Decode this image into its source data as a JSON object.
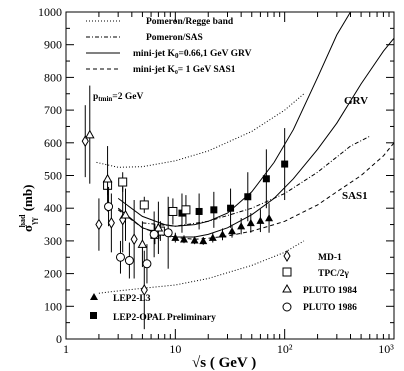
{
  "chart_data": {
    "type": "scatter",
    "title": "",
    "xlabel": "√s ( GeV )",
    "ylabel_main": "σ",
    "ylabel_sub": "γγ",
    "ylabel_sup": "had",
    "ylabel_unit": " (mb)",
    "xscale": "log",
    "xlim": [
      1,
      1000
    ],
    "ylim": [
      0,
      1000
    ],
    "x_ticks": [
      {
        "value": 1,
        "label": "1"
      },
      {
        "value": 10,
        "label": "10"
      },
      {
        "value": 100,
        "label": "10²"
      },
      {
        "value": 1000,
        "label": "10³"
      }
    ],
    "y_ticks": [
      0,
      100,
      200,
      300,
      400,
      500,
      600,
      700,
      800,
      900,
      1000
    ],
    "grid": false,
    "annotation_ptmin": "p",
    "annotation_ptmin_sub": "tmin",
    "annotation_ptmin_rest": "=2 GeV",
    "curve_labels": [
      {
        "text": "GRV",
        "x": 160,
        "y": 800
      },
      {
        "text": "SAS1",
        "x": 290,
        "y": 420
      }
    ],
    "line_legend": [
      {
        "label": "Pomeron/Regge band",
        "style": "dotted"
      },
      {
        "label": "Pomeron/SAS",
        "style": "dashdot"
      },
      {
        "label_main": "mini-jet K",
        "label_sub": "0",
        "label_rest": "=0.66,1 GeV  GRV",
        "style": "solid"
      },
      {
        "label": "mini-jet K₀= 1 GeV  SAS1",
        "style": "dashed"
      }
    ],
    "marker_legend_left": [
      {
        "label": "LEP2-L3",
        "marker": "triangle-filled"
      },
      {
        "label": "LEP2-OPAL Preliminary",
        "marker": "square-filled"
      }
    ],
    "marker_legend_right": [
      {
        "label": "MD-1",
        "marker": "diamond-open"
      },
      {
        "label": "TPC/2γ",
        "marker": "square-open"
      },
      {
        "label": "PLUTO 1984",
        "marker": "triangle-open"
      },
      {
        "label": "PLUTO 1986",
        "marker": "circle-open"
      }
    ],
    "series": [
      {
        "name": "LEP2-L3",
        "marker": "triangle-filled",
        "points": [
          {
            "x": 10,
            "y": 310,
            "err": 15
          },
          {
            "x": 12,
            "y": 305,
            "err": 12
          },
          {
            "x": 15,
            "y": 302,
            "err": 12
          },
          {
            "x": 18,
            "y": 300,
            "err": 12
          },
          {
            "x": 22,
            "y": 310,
            "err": 15
          },
          {
            "x": 27,
            "y": 320,
            "err": 18
          },
          {
            "x": 33,
            "y": 330,
            "err": 20
          },
          {
            "x": 40,
            "y": 345,
            "err": 25
          },
          {
            "x": 49,
            "y": 355,
            "err": 30
          },
          {
            "x": 60,
            "y": 362,
            "err": 35
          },
          {
            "x": 72,
            "y": 370,
            "err": 45
          }
        ]
      },
      {
        "name": "LEP2-OPAL Preliminary",
        "marker": "square-filled",
        "points": [
          {
            "x": 11.5,
            "y": 385,
            "err": 60
          },
          {
            "x": 16.5,
            "y": 390,
            "err": 55
          },
          {
            "x": 22.5,
            "y": 395,
            "err": 55
          },
          {
            "x": 32,
            "y": 400,
            "err": 60
          },
          {
            "x": 46,
            "y": 435,
            "err": 75
          },
          {
            "x": 68,
            "y": 490,
            "err": 90
          },
          {
            "x": 100,
            "y": 535,
            "err": 110
          }
        ]
      },
      {
        "name": "MD-1",
        "marker": "diamond-open",
        "points": [
          {
            "x": 1.5,
            "y": 605,
            "err": 110
          },
          {
            "x": 2.0,
            "y": 350,
            "err": 80
          },
          {
            "x": 2.6,
            "y": 355,
            "err": 90
          },
          {
            "x": 3.3,
            "y": 365,
            "err": 100
          },
          {
            "x": 4.2,
            "y": 305,
            "err": 120
          },
          {
            "x": 5.2,
            "y": 150,
            "err": 120
          }
        ]
      },
      {
        "name": "TPC/2γ",
        "marker": "square-open",
        "points": [
          {
            "x": 2.4,
            "y": 470,
            "err": 30
          },
          {
            "x": 3.3,
            "y": 480,
            "err": 30
          },
          {
            "x": 5.2,
            "y": 410,
            "err": 25
          },
          {
            "x": 6.5,
            "y": 320,
            "err": 30
          },
          {
            "x": 7.3,
            "y": 330,
            "err": 30
          },
          {
            "x": 9.5,
            "y": 390,
            "err": 40
          },
          {
            "x": 12.5,
            "y": 395,
            "err": 45
          }
        ]
      },
      {
        "name": "PLUTO 1984",
        "marker": "triangle-open",
        "points": [
          {
            "x": 1.65,
            "y": 625,
            "err": 150
          },
          {
            "x": 2.4,
            "y": 490,
            "err": 100
          },
          {
            "x": 3.5,
            "y": 380,
            "err": 80
          },
          {
            "x": 5.0,
            "y": 290,
            "err": 70
          },
          {
            "x": 7.0,
            "y": 340,
            "err": 80
          }
        ]
      },
      {
        "name": "PLUTO 1986",
        "marker": "circle-open",
        "points": [
          {
            "x": 2.45,
            "y": 405,
            "err": 60
          },
          {
            "x": 3.15,
            "y": 250,
            "err": 50
          },
          {
            "x": 3.8,
            "y": 240,
            "err": 55
          },
          {
            "x": 5.5,
            "y": 230,
            "err": 60
          },
          {
            "x": 6.4,
            "y": 320,
            "err": 70
          },
          {
            "x": 8.6,
            "y": 325,
            "err": 110
          }
        ]
      }
    ],
    "curves": [
      {
        "style": "dotted",
        "points": [
          [
            1.9,
            540
          ],
          [
            3,
            525
          ],
          [
            5,
            527
          ],
          [
            10,
            545
          ],
          [
            20,
            575
          ],
          [
            50,
            635
          ],
          [
            100,
            700
          ],
          [
            150,
            750
          ]
        ]
      },
      {
        "style": "dotted",
        "points": [
          [
            2,
            140
          ],
          [
            3,
            147
          ],
          [
            5,
            155
          ],
          [
            10,
            165
          ],
          [
            20,
            185
          ],
          [
            50,
            225
          ],
          [
            100,
            265
          ],
          [
            150,
            300
          ]
        ]
      },
      {
        "style": "solid",
        "points": [
          [
            3,
            430
          ],
          [
            5,
            375
          ],
          [
            8,
            350
          ],
          [
            10,
            345
          ],
          [
            15,
            350
          ],
          [
            20,
            360
          ],
          [
            30,
            385
          ],
          [
            50,
            450
          ],
          [
            80,
            540
          ],
          [
            120,
            640
          ],
          [
            200,
            800
          ],
          [
            300,
            930
          ],
          [
            400,
            1000
          ]
        ]
      },
      {
        "style": "solid",
        "points": [
          [
            3,
            400
          ],
          [
            5,
            340
          ],
          [
            8,
            318
          ],
          [
            10,
            312
          ],
          [
            15,
            312
          ],
          [
            20,
            320
          ],
          [
            30,
            340
          ],
          [
            50,
            380
          ],
          [
            80,
            430
          ],
          [
            120,
            490
          ],
          [
            200,
            580
          ],
          [
            300,
            660
          ],
          [
            500,
            780
          ],
          [
            800,
            880
          ],
          [
            1000,
            920
          ]
        ]
      },
      {
        "style": "dashed",
        "points": [
          [
            3,
            395
          ],
          [
            5,
            340
          ],
          [
            8,
            315
          ],
          [
            10,
            310
          ],
          [
            15,
            305
          ],
          [
            20,
            308
          ],
          [
            30,
            315
          ],
          [
            50,
            330
          ],
          [
            80,
            350
          ],
          [
            100,
            360
          ],
          [
            200,
            410
          ],
          [
            300,
            450
          ],
          [
            500,
            500
          ],
          [
            800,
            560
          ],
          [
            1000,
            600
          ]
        ]
      },
      {
        "style": "dashdot",
        "points": [
          [
            5,
            355
          ],
          [
            10,
            345
          ],
          [
            20,
            360
          ],
          [
            50,
            400
          ],
          [
            100,
            445
          ],
          [
            200,
            510
          ],
          [
            400,
            590
          ],
          [
            600,
            620
          ]
        ]
      }
    ]
  }
}
